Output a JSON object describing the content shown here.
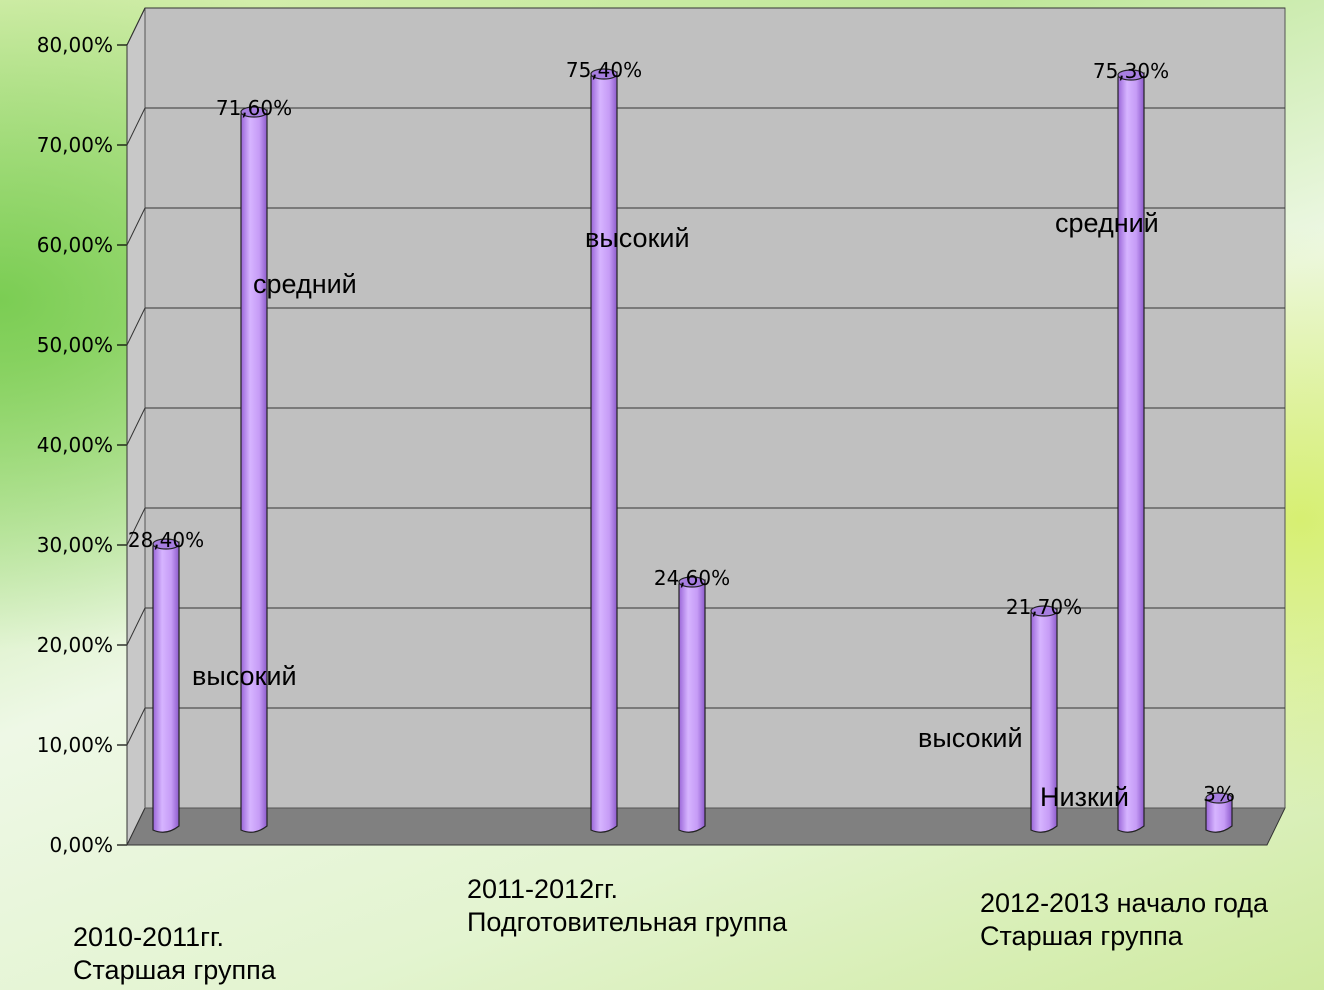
{
  "chart_data": {
    "type": "bar",
    "ylim": [
      0,
      80
    ],
    "yticks": [
      "0,00%",
      "10,00%",
      "20,00%",
      "30,00%",
      "40,00%",
      "50,00%",
      "60,00%",
      "70,00%",
      "80,00%"
    ],
    "grid": true,
    "categories": [
      {
        "line1": "2010-2011гг.",
        "line2": "Старшая группа"
      },
      {
        "line1": "2011-2012гг.",
        "line2": "Подготовительная группа"
      },
      {
        "line1": "2012-2013 начало года",
        "line2": "Старшая группа"
      }
    ],
    "bars": [
      {
        "category": 0,
        "value": 28.4,
        "label": "28,40%"
      },
      {
        "category": 0,
        "value": 71.6,
        "label": "71,60%"
      },
      {
        "category": 1,
        "value": 75.4,
        "label": "75,40%"
      },
      {
        "category": 1,
        "value": 24.6,
        "label": "24,60%"
      },
      {
        "category": 2,
        "value": 21.7,
        "label": "21,70%"
      },
      {
        "category": 2,
        "value": 75.3,
        "label": "75,30%"
      },
      {
        "category": 2,
        "value": 3,
        "label": "3%"
      }
    ],
    "annotations": [
      "высокий",
      "средний",
      "высокий",
      "средний",
      "высокий",
      "Низкий"
    ]
  }
}
